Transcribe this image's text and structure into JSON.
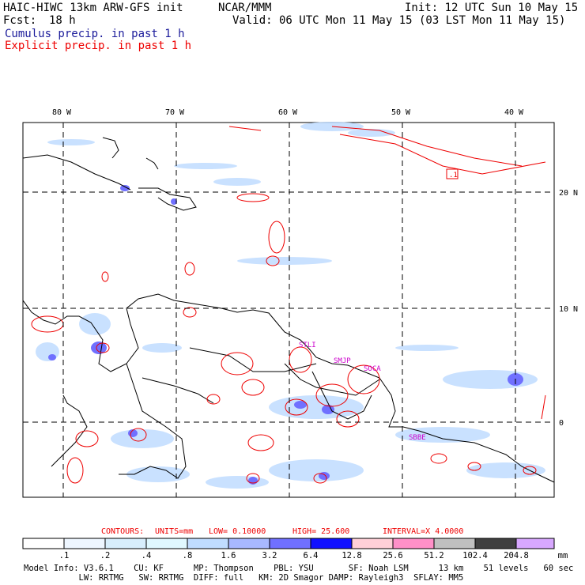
{
  "header": {
    "line1_left": "HAIC-HIWC 13km ARW-GFS init",
    "line1_mid": "NCAR/MMM",
    "line1_right": "Init: 12 UTC Sun 10 May 15",
    "fcst_label": "Fcst:",
    "fcst_value": "18 h",
    "valid": "Valid: 06 UTC Mon 11 May 15 (03 LST Mon 11 May 15)",
    "field1": "Cumulus precip. in past 1 h",
    "field2": "Explicit precip. in past 1 h",
    "field1_color": "#1a1a9a",
    "field2_color": "#ee0000"
  },
  "map": {
    "lon_labels": [
      "80 W",
      "70 W",
      "60 W",
      "50 W",
      "40 W"
    ],
    "lat_labels": [
      "20 N",
      "10 N",
      "0"
    ],
    "stations": [
      "STLI",
      "SMJP",
      "SOCA",
      "SBBE"
    ],
    "marker_label": ".1"
  },
  "contours_info": {
    "contours": "CONTOURS:",
    "units": "UNITS=mm",
    "low": "LOW= 0.10000",
    "high": "HIGH= 25.600",
    "interval": "INTERVAL=X 4.0000"
  },
  "colorbar": {
    "values": [
      ".1",
      ".2",
      ".4",
      ".8",
      "1.6",
      "3.2",
      "6.4",
      "12.8",
      "25.6",
      "51.2",
      "102.4",
      "204.8"
    ],
    "unit": "mm",
    "colors": [
      "#ffffff",
      "#eef6ff",
      "#d8eefc",
      "#e0f8ff",
      "#c0dcff",
      "#a8b8ff",
      "#7070ff",
      "#1010ff",
      "#ffd0d8",
      "#ff90c8",
      "#c0c0c0",
      "#404040",
      "#d8a8ff"
    ]
  },
  "model_info": {
    "line1": "Model Info: V3.6.1    CU: KF      MP: Thompson    PBL: YSU       SF: Noah LSM      13 km    51 levels   60 sec",
    "line2": "           LW: RRTMG   SW: RRTMG  DIFF: full   KM: 2D Smagor DAMP: Rayleigh3  SFLAY: MM5"
  }
}
